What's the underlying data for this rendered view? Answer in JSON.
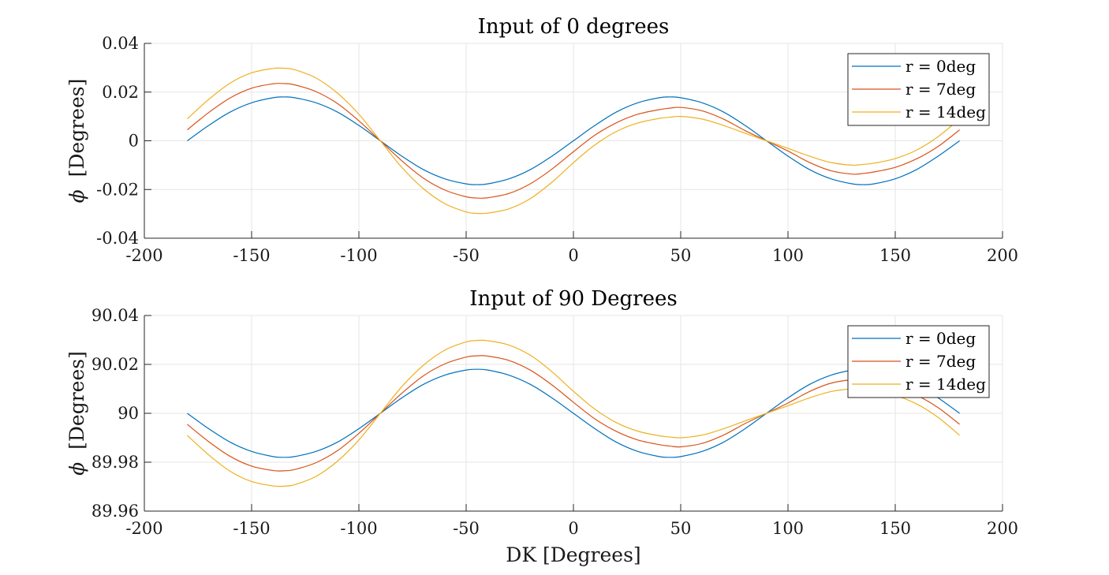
{
  "chart_data": [
    {
      "type": "line",
      "title": "Input of 0 degrees",
      "xlabel": "",
      "ylabel_symbol": "ϕ",
      "ylabel": "[Degrees]",
      "xlim": [
        -200,
        200
      ],
      "ylim": [
        -0.04,
        0.04
      ],
      "xticks": [
        -200,
        -150,
        -100,
        -50,
        0,
        50,
        100,
        150,
        200
      ],
      "xtick_labels": [
        "-200",
        "-150",
        "-100",
        "-50",
        "0",
        "50",
        "100",
        "150",
        "200"
      ],
      "yticks": [
        -0.04,
        -0.02,
        0,
        0.02,
        0.04
      ],
      "ytick_labels": [
        "-0.04",
        "-0.02",
        "0",
        "0.02",
        "0.04"
      ],
      "grid": true,
      "legend_position": "top-right",
      "series": [
        {
          "name": "r = 0deg",
          "color": "#0072BD",
          "x": [
            -180,
            -170,
            -160,
            -150,
            -140,
            -135,
            -130,
            -120,
            -110,
            -100,
            -90,
            -80,
            -70,
            -60,
            -50,
            -45,
            -40,
            -30,
            -20,
            -10,
            0,
            10,
            20,
            30,
            40,
            45,
            50,
            60,
            70,
            80,
            90,
            100,
            110,
            120,
            130,
            135,
            140,
            150,
            160,
            170,
            180
          ],
          "y": [
            0,
            0.0063,
            0.0118,
            0.0156,
            0.0177,
            0.018,
            0.0177,
            0.0156,
            0.0118,
            0.0063,
            0,
            -0.0063,
            -0.0118,
            -0.0156,
            -0.0177,
            -0.018,
            -0.0177,
            -0.0156,
            -0.0118,
            -0.0063,
            0,
            0.0063,
            0.0118,
            0.0156,
            0.0177,
            0.018,
            0.0177,
            0.0156,
            0.0118,
            0.0063,
            0,
            -0.0063,
            -0.0118,
            -0.0156,
            -0.0177,
            -0.018,
            -0.0177,
            -0.0156,
            -0.0118,
            -0.0063,
            0
          ]
        },
        {
          "name": "r = 7deg",
          "color": "#D95319",
          "x": [
            -180,
            -170,
            -160,
            -150,
            -140,
            -135,
            -130,
            -120,
            -110,
            -100,
            -90,
            -80,
            -70,
            -60,
            -50,
            -45,
            -40,
            -30,
            -20,
            -10,
            0,
            10,
            20,
            30,
            40,
            45,
            50,
            60,
            70,
            80,
            90,
            100,
            110,
            120,
            130,
            135,
            140,
            150,
            160,
            170,
            180
          ],
          "y": [
            0.0045,
            0.0116,
            0.0176,
            0.0216,
            0.0234,
            0.0235,
            0.023,
            0.0202,
            0.0153,
            0.0082,
            0,
            -0.0082,
            -0.0153,
            -0.0202,
            -0.023,
            -0.0235,
            -0.0234,
            -0.0216,
            -0.0176,
            -0.0116,
            -0.0045,
            0.0023,
            0.0074,
            0.0109,
            0.0128,
            0.0134,
            0.0137,
            0.0123,
            0.0089,
            0.0042,
            0,
            -0.0042,
            -0.0089,
            -0.0123,
            -0.0137,
            -0.0134,
            -0.0128,
            -0.0109,
            -0.0074,
            -0.0023,
            0.0045
          ]
        },
        {
          "name": "r = 14deg",
          "color": "#EDB120",
          "x": [
            -180,
            -170,
            -160,
            -150,
            -140,
            -135,
            -130,
            -120,
            -110,
            -100,
            -90,
            -80,
            -70,
            -60,
            -50,
            -45,
            -40,
            -30,
            -20,
            -10,
            0,
            10,
            20,
            30,
            40,
            45,
            50,
            60,
            70,
            80,
            90,
            100,
            110,
            120,
            130,
            135,
            140,
            150,
            160,
            170,
            180
          ],
          "y": [
            0.009,
            0.017,
            0.0237,
            0.0279,
            0.0297,
            0.0298,
            0.0292,
            0.0258,
            0.0196,
            0.0109,
            0,
            -0.0109,
            -0.0196,
            -0.0258,
            -0.0292,
            -0.0298,
            -0.0297,
            -0.0279,
            -0.0237,
            -0.017,
            -0.009,
            -0.0017,
            0.0038,
            0.0073,
            0.0092,
            0.0097,
            0.01,
            0.0089,
            0.0063,
            0.0031,
            0,
            -0.0031,
            -0.0063,
            -0.0089,
            -0.01,
            -0.0097,
            -0.0092,
            -0.0073,
            -0.0038,
            0.0017,
            0.009
          ]
        }
      ]
    },
    {
      "type": "line",
      "title": "Input of 90 Degrees",
      "xlabel": "DK [Degrees]",
      "ylabel_symbol": "ϕ",
      "ylabel": "[Degrees]",
      "xlim": [
        -200,
        200
      ],
      "ylim": [
        89.96,
        90.04
      ],
      "xticks": [
        -200,
        -150,
        -100,
        -50,
        0,
        50,
        100,
        150,
        200
      ],
      "xtick_labels": [
        "-200",
        "-150",
        "-100",
        "-50",
        "0",
        "50",
        "100",
        "150",
        "200"
      ],
      "yticks": [
        89.96,
        89.98,
        90,
        90.02,
        90.04
      ],
      "ytick_labels": [
        "89.96",
        "89.98",
        "90",
        "90.02",
        "90.04"
      ],
      "grid": true,
      "legend_position": "top-right",
      "series": [
        {
          "name": "r = 0deg",
          "color": "#0072BD",
          "x": [
            -180,
            -170,
            -160,
            -150,
            -140,
            -135,
            -130,
            -120,
            -110,
            -100,
            -90,
            -80,
            -70,
            -60,
            -50,
            -45,
            -40,
            -30,
            -20,
            -10,
            0,
            10,
            20,
            30,
            40,
            45,
            50,
            60,
            70,
            80,
            90,
            100,
            110,
            120,
            130,
            135,
            140,
            150,
            160,
            170,
            180
          ],
          "y": [
            90,
            89.9937,
            89.9882,
            89.9844,
            89.9823,
            89.982,
            89.9823,
            89.9844,
            89.9882,
            89.9937,
            90,
            90.0063,
            90.0118,
            90.0156,
            90.0177,
            90.018,
            90.0177,
            90.0156,
            90.0118,
            90.0063,
            90,
            89.9937,
            89.9882,
            89.9844,
            89.9823,
            89.982,
            89.9823,
            89.9844,
            89.9882,
            89.9937,
            90,
            90.0063,
            90.0118,
            90.0156,
            90.0177,
            90.018,
            90.0177,
            90.0156,
            90.0118,
            90.0063,
            90
          ]
        },
        {
          "name": "r = 7deg",
          "color": "#D95319",
          "x": [
            -180,
            -170,
            -160,
            -150,
            -140,
            -135,
            -130,
            -120,
            -110,
            -100,
            -90,
            -80,
            -70,
            -60,
            -50,
            -45,
            -40,
            -30,
            -20,
            -10,
            0,
            10,
            20,
            30,
            40,
            45,
            50,
            60,
            70,
            80,
            90,
            100,
            110,
            120,
            130,
            135,
            140,
            150,
            160,
            170,
            180
          ],
          "y": [
            89.9955,
            89.9884,
            89.9824,
            89.9784,
            89.9766,
            89.9765,
            89.977,
            89.9798,
            89.9847,
            89.9918,
            90,
            90.0082,
            90.0153,
            90.0202,
            90.023,
            90.0235,
            90.0234,
            90.0216,
            90.0176,
            90.0116,
            90.0045,
            89.9977,
            89.9926,
            89.9891,
            89.9872,
            89.9866,
            89.9863,
            89.9877,
            89.9911,
            89.9958,
            90,
            90.0042,
            90.0089,
            90.0123,
            90.0137,
            90.0134,
            90.0128,
            90.0109,
            90.0074,
            90.0023,
            89.9955
          ]
        },
        {
          "name": "r = 14deg",
          "color": "#EDB120",
          "x": [
            -180,
            -170,
            -160,
            -150,
            -140,
            -135,
            -130,
            -120,
            -110,
            -100,
            -90,
            -80,
            -70,
            -60,
            -50,
            -45,
            -40,
            -30,
            -20,
            -10,
            0,
            10,
            20,
            30,
            40,
            45,
            50,
            60,
            70,
            80,
            90,
            100,
            110,
            120,
            130,
            135,
            140,
            150,
            160,
            170,
            180
          ],
          "y": [
            89.991,
            89.983,
            89.9763,
            89.9721,
            89.9703,
            89.9702,
            89.9708,
            89.9742,
            89.9804,
            89.9891,
            90,
            90.0109,
            90.0196,
            90.0258,
            90.0292,
            90.0298,
            90.0297,
            90.0279,
            90.0237,
            90.017,
            90.009,
            90.0017,
            89.9962,
            89.9927,
            89.9908,
            89.9903,
            89.99,
            89.9911,
            89.9937,
            89.9969,
            90,
            90.0031,
            90.0063,
            90.0089,
            90.01,
            90.0097,
            90.0092,
            90.0073,
            90.0038,
            89.9983,
            89.991
          ]
        }
      ]
    }
  ]
}
